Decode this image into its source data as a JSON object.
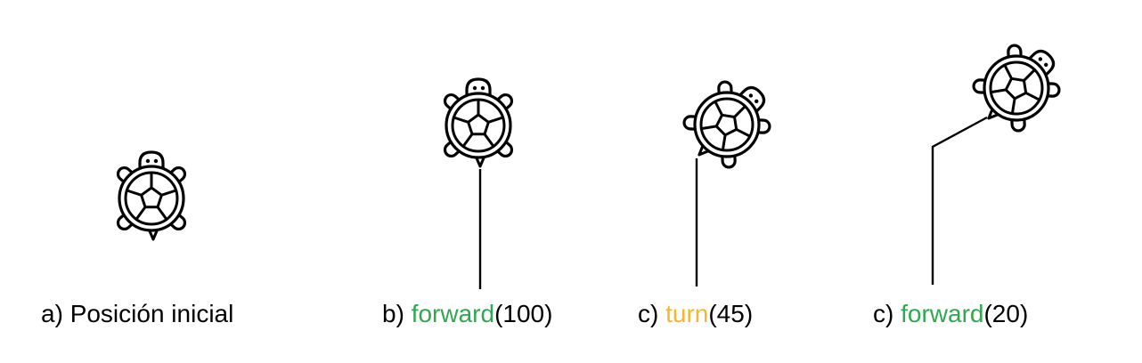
{
  "colors": {
    "forward": "#2fa84f",
    "turn": "#f2b631",
    "ink": "#000000",
    "background": "#ffffff"
  },
  "icons": [
    "turtle-icon",
    "turtle-icon",
    "turtle-icon",
    "turtle-icon"
  ],
  "steps": [
    {
      "prefix": "a) ",
      "label": "Posición inicial"
    },
    {
      "prefix": "b) ",
      "command": "forward",
      "args": "(100)"
    },
    {
      "prefix": "c) ",
      "command": "turn",
      "args": "(45)"
    },
    {
      "prefix": "c) ",
      "command": "forward",
      "args": "(20)"
    }
  ]
}
